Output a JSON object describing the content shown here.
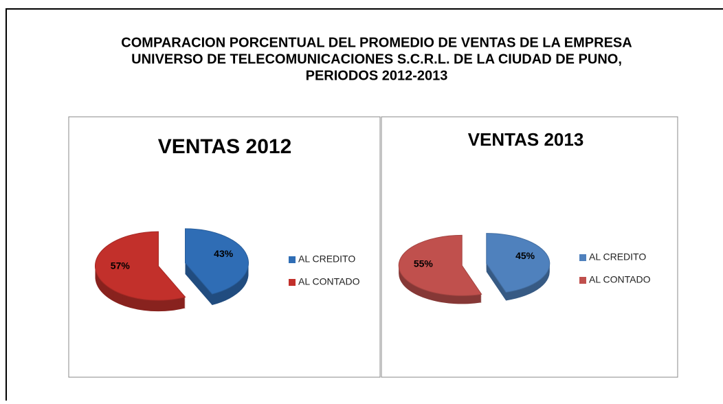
{
  "title_lines": [
    "COMPARACION PORCENTUAL DEL PROMEDIO DE VENTAS DE LA EMPRESA",
    "UNIVERSO DE TELECOMUNICACIONES S.C.R.L. DE LA CIUDAD DE PUNO,",
    "PERIODOS 2012-2013"
  ],
  "chart_data": [
    {
      "type": "pie",
      "title": "VENTAS 2012",
      "categories": [
        "AL CREDITO",
        "AL CONTADO"
      ],
      "values": [
        43,
        57
      ],
      "value_labels": [
        "43%",
        "57%"
      ],
      "colors": [
        "#2f6db5",
        "#c2302b"
      ]
    },
    {
      "type": "pie",
      "title": "VENTAS 2013",
      "categories": [
        "AL CREDITO",
        "AL CONTADO"
      ],
      "values": [
        45,
        55
      ],
      "value_labels": [
        "45%",
        "55%"
      ],
      "colors": [
        "#4f81bd",
        "#c0504d"
      ]
    }
  ]
}
